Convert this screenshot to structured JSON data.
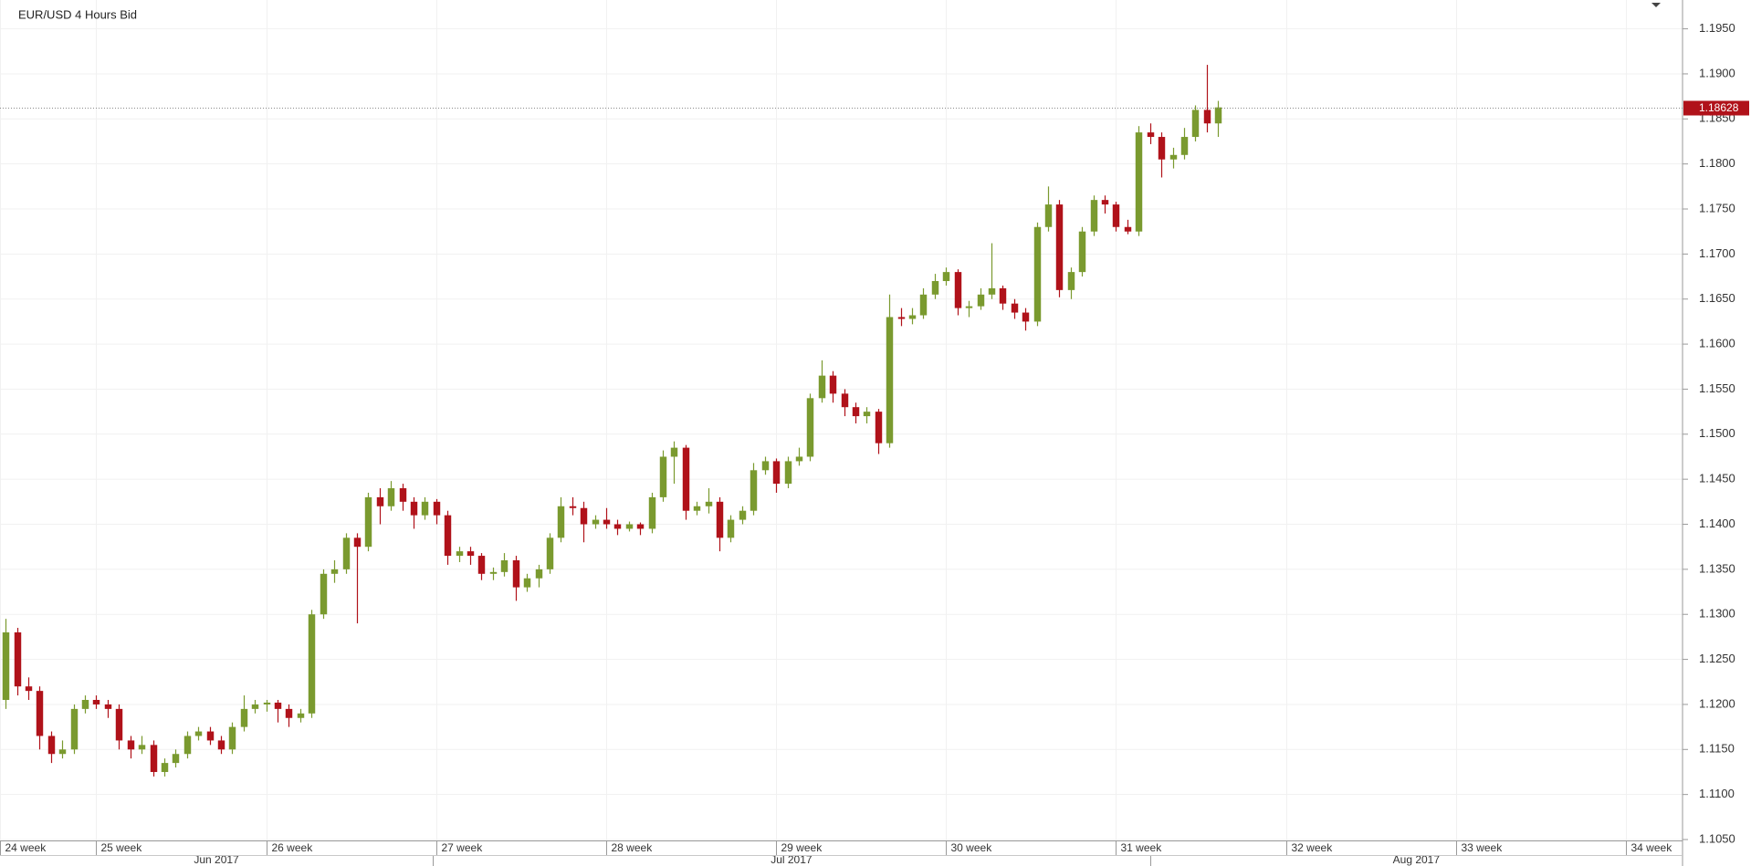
{
  "chart_data": {
    "type": "candlestick",
    "title": "EUR/USD  4 Hours Bid",
    "up_color": "#7a9a2f",
    "down_color": "#b0121a",
    "grid": true,
    "xlim": [
      0,
      148.5
    ],
    "ylim": [
      1.1049,
      1.1982
    ],
    "yticks": [
      {
        "value": 1.105,
        "label": "1.1050"
      },
      {
        "value": 1.11,
        "label": "1.1100"
      },
      {
        "value": 1.115,
        "label": "1.1150"
      },
      {
        "value": 1.12,
        "label": "1.1200"
      },
      {
        "value": 1.125,
        "label": "1.1250"
      },
      {
        "value": 1.13,
        "label": "1.1300"
      },
      {
        "value": 1.135,
        "label": "1.1350"
      },
      {
        "value": 1.14,
        "label": "1.1400"
      },
      {
        "value": 1.145,
        "label": "1.1450"
      },
      {
        "value": 1.15,
        "label": "1.1500"
      },
      {
        "value": 1.155,
        "label": "1.1550"
      },
      {
        "value": 1.16,
        "label": "1.1600"
      },
      {
        "value": 1.165,
        "label": "1.1650"
      },
      {
        "value": 1.17,
        "label": "1.1700"
      },
      {
        "value": 1.175,
        "label": "1.1750"
      },
      {
        "value": 1.18,
        "label": "1.1800"
      },
      {
        "value": 1.185,
        "label": "1.1850"
      },
      {
        "value": 1.19,
        "label": "1.1900"
      },
      {
        "value": 1.195,
        "label": "1.1950"
      }
    ],
    "xticks": [
      {
        "value": 0,
        "label": "24 week"
      },
      {
        "value": 8.5,
        "label": "25 week"
      },
      {
        "value": 23.5,
        "label": "26 week"
      },
      {
        "value": 38.5,
        "label": "27 week"
      },
      {
        "value": 53.5,
        "label": "28 week"
      },
      {
        "value": 68.5,
        "label": "29 week"
      },
      {
        "value": 83.5,
        "label": "30 week"
      },
      {
        "value": 98.5,
        "label": "31 week"
      },
      {
        "value": 113.5,
        "label": "32 week"
      },
      {
        "value": 128.5,
        "label": "33 week"
      },
      {
        "value": 143.5,
        "label": "34 week"
      }
    ],
    "months": [
      {
        "label": "Jun 2017",
        "start": 0,
        "end": 38.2
      },
      {
        "label": "Jul 2017",
        "start": 38.2,
        "end": 101.5
      },
      {
        "label": "Aug 2017",
        "start": 101.5,
        "end": 148.5
      }
    ],
    "ohlc": [
      [
        1.1205,
        1.1295,
        1.1195,
        1.128
      ],
      [
        1.128,
        1.1285,
        1.121,
        1.122
      ],
      [
        1.122,
        1.123,
        1.1205,
        1.1215
      ],
      [
        1.1215,
        1.122,
        1.115,
        1.1165
      ],
      [
        1.1165,
        1.117,
        1.1135,
        1.1145
      ],
      [
        1.1145,
        1.116,
        1.114,
        1.115
      ],
      [
        1.115,
        1.12,
        1.1145,
        1.1195
      ],
      [
        1.1195,
        1.121,
        1.119,
        1.1205
      ],
      [
        1.1205,
        1.121,
        1.1195,
        1.12
      ],
      [
        1.12,
        1.1205,
        1.1185,
        1.1195
      ],
      [
        1.1195,
        1.12,
        1.115,
        1.116
      ],
      [
        1.116,
        1.1165,
        1.114,
        1.115
      ],
      [
        1.115,
        1.1165,
        1.1145,
        1.1155
      ],
      [
        1.1155,
        1.116,
        1.112,
        1.1125
      ],
      [
        1.1125,
        1.114,
        1.112,
        1.1135
      ],
      [
        1.1135,
        1.115,
        1.113,
        1.1145
      ],
      [
        1.1145,
        1.117,
        1.114,
        1.1165
      ],
      [
        1.1165,
        1.1175,
        1.116,
        1.117
      ],
      [
        1.117,
        1.1175,
        1.1155,
        1.116
      ],
      [
        1.116,
        1.1165,
        1.1145,
        1.115
      ],
      [
        1.115,
        1.118,
        1.1145,
        1.1175
      ],
      [
        1.1175,
        1.121,
        1.117,
        1.1195
      ],
      [
        1.1195,
        1.1205,
        1.119,
        1.12
      ],
      [
        1.12,
        1.1205,
        1.1192,
        1.1202
      ],
      [
        1.1202,
        1.1205,
        1.118,
        1.1195
      ],
      [
        1.1195,
        1.12,
        1.1175,
        1.1185
      ],
      [
        1.1185,
        1.1195,
        1.118,
        1.119
      ],
      [
        1.119,
        1.1305,
        1.1185,
        1.13
      ],
      [
        1.13,
        1.135,
        1.1295,
        1.1345
      ],
      [
        1.1345,
        1.136,
        1.1335,
        1.135
      ],
      [
        1.135,
        1.139,
        1.1345,
        1.1385
      ],
      [
        1.1385,
        1.139,
        1.129,
        1.1375
      ],
      [
        1.1375,
        1.1435,
        1.137,
        1.143
      ],
      [
        1.143,
        1.144,
        1.14,
        1.142
      ],
      [
        1.142,
        1.1448,
        1.1415,
        1.144
      ],
      [
        1.144,
        1.1445,
        1.1415,
        1.1425
      ],
      [
        1.1425,
        1.143,
        1.1395,
        1.141
      ],
      [
        1.141,
        1.143,
        1.1405,
        1.1425
      ],
      [
        1.1425,
        1.1428,
        1.14,
        1.141
      ],
      [
        1.141,
        1.1415,
        1.1355,
        1.1365
      ],
      [
        1.1365,
        1.1375,
        1.1358,
        1.137
      ],
      [
        1.137,
        1.1375,
        1.1355,
        1.1365
      ],
      [
        1.1365,
        1.1368,
        1.1338,
        1.1345
      ],
      [
        1.1345,
        1.1352,
        1.1338,
        1.1347
      ],
      [
        1.1347,
        1.1368,
        1.1342,
        1.136
      ],
      [
        1.136,
        1.1365,
        1.1315,
        1.133
      ],
      [
        1.133,
        1.1345,
        1.1325,
        1.134
      ],
      [
        1.134,
        1.1355,
        1.133,
        1.135
      ],
      [
        1.135,
        1.139,
        1.1345,
        1.1385
      ],
      [
        1.1385,
        1.143,
        1.138,
        1.142
      ],
      [
        1.142,
        1.143,
        1.141,
        1.1418
      ],
      [
        1.1418,
        1.1425,
        1.138,
        1.14
      ],
      [
        1.14,
        1.141,
        1.1395,
        1.1405
      ],
      [
        1.1405,
        1.1418,
        1.1395,
        1.14
      ],
      [
        1.14,
        1.1405,
        1.1388,
        1.1395
      ],
      [
        1.1395,
        1.1403,
        1.1392,
        1.14
      ],
      [
        1.14,
        1.1402,
        1.1388,
        1.1395
      ],
      [
        1.1395,
        1.1435,
        1.139,
        1.143
      ],
      [
        1.143,
        1.1482,
        1.1425,
        1.1475
      ],
      [
        1.1475,
        1.1492,
        1.1445,
        1.1485
      ],
      [
        1.1485,
        1.1488,
        1.1405,
        1.1415
      ],
      [
        1.1415,
        1.1425,
        1.141,
        1.142
      ],
      [
        1.142,
        1.144,
        1.1412,
        1.1425
      ],
      [
        1.1425,
        1.143,
        1.137,
        1.1385
      ],
      [
        1.1385,
        1.141,
        1.138,
        1.1405
      ],
      [
        1.1405,
        1.142,
        1.14,
        1.1415
      ],
      [
        1.1415,
        1.1468,
        1.141,
        1.146
      ],
      [
        1.146,
        1.1475,
        1.1455,
        1.147
      ],
      [
        1.147,
        1.1473,
        1.1435,
        1.1445
      ],
      [
        1.1445,
        1.1475,
        1.144,
        1.147
      ],
      [
        1.147,
        1.1485,
        1.1465,
        1.1475
      ],
      [
        1.1475,
        1.1545,
        1.147,
        1.154
      ],
      [
        1.154,
        1.1582,
        1.1535,
        1.1565
      ],
      [
        1.1565,
        1.157,
        1.1535,
        1.1545
      ],
      [
        1.1545,
        1.155,
        1.152,
        1.153
      ],
      [
        1.153,
        1.1535,
        1.1512,
        1.152
      ],
      [
        1.152,
        1.153,
        1.1512,
        1.1525
      ],
      [
        1.1525,
        1.1528,
        1.1478,
        1.149
      ],
      [
        1.149,
        1.1655,
        1.1485,
        1.163
      ],
      [
        1.163,
        1.164,
        1.162,
        1.1628
      ],
      [
        1.1628,
        1.164,
        1.1622,
        1.1632
      ],
      [
        1.1632,
        1.1662,
        1.1628,
        1.1655
      ],
      [
        1.1655,
        1.1678,
        1.165,
        1.167
      ],
      [
        1.167,
        1.1685,
        1.1665,
        1.168
      ],
      [
        1.168,
        1.1683,
        1.1632,
        1.164
      ],
      [
        1.164,
        1.1648,
        1.163,
        1.1642
      ],
      [
        1.1642,
        1.1662,
        1.1638,
        1.1655
      ],
      [
        1.1655,
        1.1712,
        1.165,
        1.1662
      ],
      [
        1.1662,
        1.1665,
        1.1638,
        1.1645
      ],
      [
        1.1645,
        1.165,
        1.1628,
        1.1635
      ],
      [
        1.1635,
        1.164,
        1.1615,
        1.1625
      ],
      [
        1.1625,
        1.1735,
        1.162,
        1.173
      ],
      [
        1.173,
        1.1775,
        1.1725,
        1.1755
      ],
      [
        1.1755,
        1.176,
        1.1652,
        1.166
      ],
      [
        1.166,
        1.1685,
        1.165,
        1.168
      ],
      [
        1.168,
        1.173,
        1.1675,
        1.1725
      ],
      [
        1.1725,
        1.1765,
        1.172,
        1.176
      ],
      [
        1.176,
        1.1765,
        1.1745,
        1.1755
      ],
      [
        1.1755,
        1.1758,
        1.1725,
        1.173
      ],
      [
        1.173,
        1.1738,
        1.1722,
        1.1725
      ],
      [
        1.1725,
        1.1842,
        1.172,
        1.1835
      ],
      [
        1.1835,
        1.1845,
        1.1822,
        1.183
      ],
      [
        1.183,
        1.1835,
        1.1785,
        1.1805
      ],
      [
        1.1805,
        1.1818,
        1.1795,
        1.181
      ],
      [
        1.181,
        1.184,
        1.1805,
        1.183
      ],
      [
        1.183,
        1.1865,
        1.1825,
        1.186
      ],
      [
        1.186,
        1.191,
        1.1835,
        1.1845
      ],
      [
        1.1845,
        1.187,
        1.183,
        1.18628
      ]
    ]
  }
}
